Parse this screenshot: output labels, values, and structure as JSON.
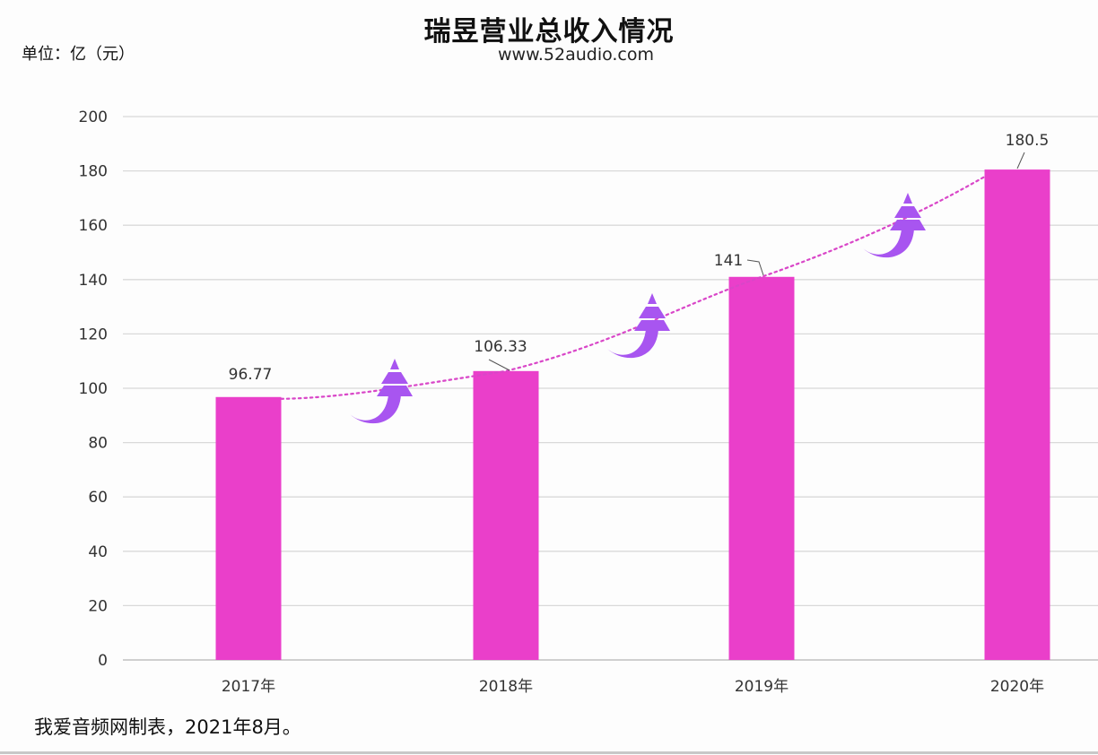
{
  "header": {
    "title": "瑞昱营业总收入情况",
    "subtitle": "www.52audio.com",
    "unit": "单位：亿（元）"
  },
  "footer": {
    "note": "我爱音频网制表，2021年8月。"
  },
  "colors": {
    "bar": "#ea3fca",
    "trend_line": "#d946c8",
    "arrow": "#a855f0",
    "grid": "#d9d9d9"
  },
  "chart_data": {
    "type": "bar",
    "title": "瑞昱营业总收入情况",
    "subtitle": "www.52audio.com",
    "xlabel": "",
    "ylabel": "单位：亿（元）",
    "categories": [
      "2017年",
      "2018年",
      "2019年",
      "2020年"
    ],
    "values": [
      96.77,
      106.33,
      141,
      180.5
    ],
    "value_labels": [
      "96.77",
      "106.33",
      "141",
      "180.5"
    ],
    "ylim": [
      0,
      200
    ],
    "yticks": [
      0,
      20,
      40,
      60,
      80,
      100,
      120,
      140,
      160,
      180,
      200
    ],
    "grid": true,
    "legend": "none",
    "annotations": [
      "dotted trend line connecting bar tops",
      "three upward curved arrows between bars"
    ]
  }
}
